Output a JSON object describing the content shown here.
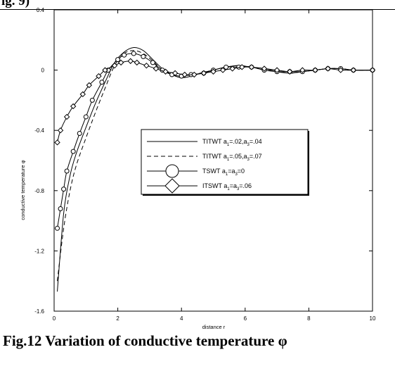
{
  "page": {
    "top_fragment": "ig. 9)",
    "caption": "Fig.12   Variation of conductive temperature φ",
    "caption_line2": "conductive temperature φ"
  },
  "chart_data": {
    "type": "line",
    "title": "",
    "xlabel": "distance r",
    "ylabel": "conductive temperature φ",
    "xlim": [
      0,
      10
    ],
    "ylim": [
      -1.6,
      0.4
    ],
    "xticks": [
      0,
      2,
      4,
      6,
      8,
      10
    ],
    "yticks": [
      0.4,
      0,
      -0.4,
      -0.8,
      -1.2,
      -1.6
    ],
    "xtick_labels": [
      "0",
      "2",
      "4",
      "6",
      "8",
      "10"
    ],
    "ytick_labels": [
      "0.4",
      "0",
      "-0.4",
      "-0.8",
      "-1.2",
      "-1.6"
    ],
    "grid": false,
    "legend_position": "right-middle",
    "series": [
      {
        "name": "TITWT a1=.02,a3=.04",
        "legend_text": "TITWT a",
        "legend_sub1": "1",
        "legend_mid": "=.02,a",
        "legend_sub2": "3",
        "legend_end": "=.04",
        "style": "solid",
        "marker": "none",
        "x": [
          0.1,
          0.3,
          0.5,
          0.7,
          1.0,
          1.3,
          1.6,
          1.9,
          2.2,
          2.5,
          2.8,
          3.1,
          3.4,
          3.7,
          4.0,
          4.3,
          4.6,
          5.0,
          5.4,
          5.8,
          6.2,
          6.6,
          7.0,
          7.4,
          7.8,
          8.2,
          8.6,
          9.0,
          9.4,
          10.0
        ],
        "y": [
          -1.47,
          -0.95,
          -0.7,
          -0.55,
          -0.38,
          -0.22,
          -0.08,
          0.05,
          0.12,
          0.15,
          0.13,
          0.07,
          0.01,
          -0.03,
          -0.05,
          -0.04,
          -0.02,
          0.0,
          0.02,
          0.03,
          0.02,
          0.01,
          -0.01,
          -0.02,
          -0.01,
          0.0,
          0.01,
          0.01,
          0.0,
          0.0
        ]
      },
      {
        "name": "TITWT a1=.05,a3=.07",
        "legend_text": "TITWT a",
        "legend_sub1": "1",
        "legend_mid": "=.05,a",
        "legend_sub2": "3",
        "legend_end": "=.07",
        "style": "dashed",
        "marker": "none",
        "x": [
          0.1,
          0.3,
          0.5,
          0.7,
          1.0,
          1.3,
          1.6,
          1.9,
          2.2,
          2.5,
          2.8,
          3.1,
          3.4,
          3.7,
          4.0,
          4.3,
          4.6,
          5.0,
          5.4,
          5.8,
          6.2,
          6.6,
          7.0,
          7.4,
          7.8,
          8.2,
          8.6,
          9.0,
          9.4,
          10.0
        ],
        "y": [
          -1.4,
          -1.05,
          -0.8,
          -0.63,
          -0.45,
          -0.28,
          -0.12,
          0.03,
          0.11,
          0.13,
          0.11,
          0.06,
          0.0,
          -0.03,
          -0.04,
          -0.03,
          -0.02,
          0.0,
          0.02,
          0.03,
          0.02,
          0.0,
          -0.01,
          -0.02,
          -0.01,
          0.0,
          0.01,
          0.01,
          0.0,
          0.0
        ]
      },
      {
        "name": "TSWT a1=a3=0",
        "legend_text": "TSWT a",
        "legend_sub1": "1",
        "legend_mid": "=a",
        "legend_sub2": "3",
        "legend_end": "=0",
        "style": "solid",
        "marker": "circle",
        "x": [
          0.1,
          0.2,
          0.3,
          0.4,
          0.6,
          0.8,
          1.0,
          1.2,
          1.5,
          1.7,
          2.0,
          2.2,
          2.5,
          2.8,
          3.1,
          3.4,
          3.7,
          4.0,
          4.3,
          4.7,
          5.0,
          5.4,
          5.8,
          6.2,
          6.6,
          7.0,
          7.4,
          7.8,
          8.2,
          8.6,
          9.0,
          9.4,
          10.0
        ],
        "y": [
          -1.05,
          -0.92,
          -0.79,
          -0.67,
          -0.54,
          -0.42,
          -0.31,
          -0.2,
          -0.08,
          0.0,
          0.07,
          0.1,
          0.11,
          0.09,
          0.05,
          0.0,
          -0.03,
          -0.04,
          -0.03,
          -0.02,
          0.0,
          0.02,
          0.02,
          0.02,
          0.0,
          -0.01,
          -0.01,
          -0.01,
          0.0,
          0.01,
          0.01,
          0.0,
          0.0
        ]
      },
      {
        "name": "ITSWT a1=a3=.06",
        "legend_text": "ITSWT a",
        "legend_sub1": "1",
        "legend_mid": "=a",
        "legend_sub2": "3",
        "legend_end": "=.06",
        "style": "solid",
        "marker": "diamond",
        "x": [
          0.1,
          0.2,
          0.4,
          0.6,
          0.9,
          1.1,
          1.4,
          1.6,
          1.9,
          2.1,
          2.4,
          2.6,
          2.9,
          3.2,
          3.5,
          3.8,
          4.1,
          4.4,
          4.7,
          5.0,
          5.3,
          5.6,
          5.9,
          6.2,
          6.6,
          7.0,
          7.4,
          7.8,
          8.2,
          8.6,
          9.0,
          9.4,
          10.0
        ],
        "y": [
          -0.48,
          -0.4,
          -0.31,
          -0.24,
          -0.16,
          -0.1,
          -0.04,
          0.0,
          0.03,
          0.05,
          0.06,
          0.05,
          0.03,
          0.01,
          -0.01,
          -0.02,
          -0.03,
          -0.03,
          -0.02,
          -0.01,
          0.0,
          0.01,
          0.02,
          0.02,
          0.01,
          0.0,
          -0.01,
          0.0,
          0.0,
          0.01,
          0.0,
          0.0,
          0.0
        ]
      }
    ]
  }
}
